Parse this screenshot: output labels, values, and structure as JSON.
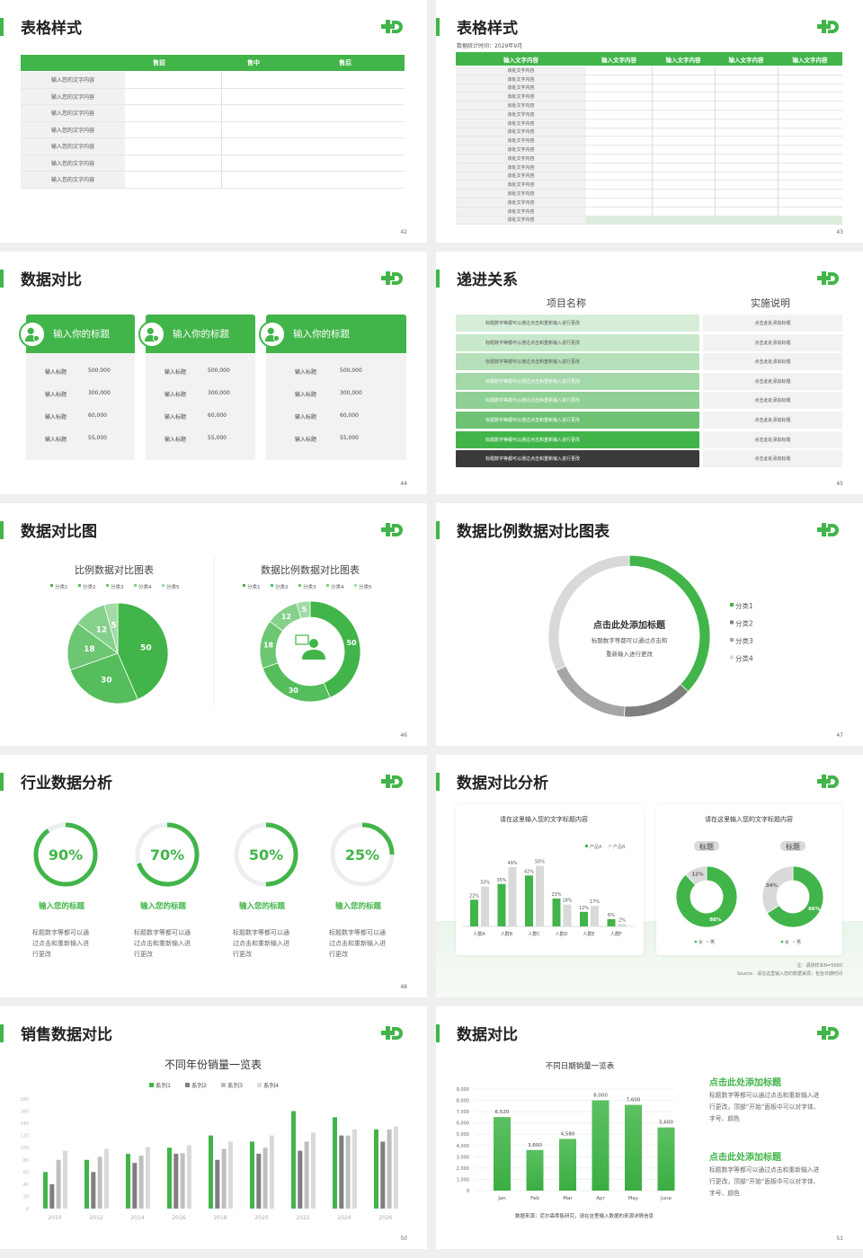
{
  "colors": {
    "accent": "#41b549",
    "dark": "#3a3a3a",
    "gray1": "#7f7f7f",
    "gray2": "#bfbfbf",
    "gray3": "#d9d9d9"
  },
  "logo_icon": "plus-d-logo-icon",
  "slides": {
    "s42": {
      "title": "表格样式",
      "page": "42",
      "headers": [
        "售前",
        "售中",
        "售后"
      ],
      "rows": [
        "输入您的文字内容",
        "输入您的文字内容",
        "输入您的文字内容",
        "输入您的文字内容",
        "输入您的文字内容",
        "输入您的文字内容",
        "输入您的文字内容"
      ]
    },
    "s43": {
      "title": "表格样式",
      "page": "43",
      "subtitle": "数据统计时间：2029年9月",
      "headers": [
        "输入文字内容",
        "输入文字内容",
        "输入文字内容",
        "输入文字内容",
        "输入文字内容"
      ],
      "rows": [
        "该处文字内容",
        "该处文字内容",
        "该处文字内容",
        "该处文字内容",
        "该处文字内容",
        "该处文字内容",
        "该处文字内容",
        "该处文字内容",
        "该处文字内容",
        "该处文字内容",
        "该处文字内容",
        "该处文字内容",
        "该处文字内容",
        "该处文字内容",
        "该处文字内容",
        "该处文字内容",
        "该处文字内容",
        "该处文字内容"
      ]
    },
    "s44": {
      "title": "数据对比",
      "page": "44",
      "cards": [
        {
          "icon": "phone-user-icon",
          "title": "输入你的标题",
          "rows": [
            {
              "k": "输入标题",
              "v": "500,000"
            },
            {
              "k": "输入标题",
              "v": "300,000"
            },
            {
              "k": "输入标题",
              "v": "60,000"
            },
            {
              "k": "输入标题",
              "v": "55,000"
            }
          ]
        },
        {
          "icon": "user-add-icon",
          "title": "输入你的标题",
          "rows": [
            {
              "k": "输入标题",
              "v": "500,000"
            },
            {
              "k": "输入标题",
              "v": "300,000"
            },
            {
              "k": "输入标题",
              "v": "60,000"
            },
            {
              "k": "输入标题",
              "v": "55,000"
            }
          ]
        },
        {
          "icon": "users-group-icon",
          "title": "输入你的标题",
          "rows": [
            {
              "k": "输入标题",
              "v": "500,000"
            },
            {
              "k": "输入标题",
              "v": "300,000"
            },
            {
              "k": "输入标题",
              "v": "60,000"
            },
            {
              "k": "输入标题",
              "v": "55,000"
            }
          ]
        }
      ]
    },
    "s45": {
      "title": "递进关系",
      "page": "45",
      "col1": "项目名称",
      "col2": "实施说明",
      "rows": [
        "标题数字等都可以通过点击和重新输入进行更改",
        "标题数字等都可以通过点击和重新输入进行更改",
        "标题数字等都可以通过点击和重新输入进行更改",
        "标题数字等都可以通过点击和重新输入进行更改",
        "标题数字等都可以通过点击和重新输入进行更改",
        "标题数字等都可以通过点击和重新输入进行更改",
        "标题数字等都可以通过点击和重新输入进行更改",
        "标题数字等都可以通过点击和重新输入进行更改"
      ],
      "notes": [
        "点击此处添加标题",
        "点击此处添加标题",
        "点击此处添加标题",
        "点击此处添加标题",
        "点击此处添加标题",
        "点击此处添加标题",
        "点击此处添加标题",
        "点击此处添加标题"
      ],
      "row_colors": [
        "#d6eed8",
        "#c8e8cb",
        "#b6e0ba",
        "#a3d8a8",
        "#8fd094",
        "#6dc274",
        "#41b549",
        "#3a3a3a"
      ]
    },
    "s46": {
      "title": "数据对比图",
      "page": "46"
    },
    "s47": {
      "title": "数据比例数据对比图表",
      "page": "47",
      "center_title": "点击此处添加标题",
      "center_text1": "标题数字等都可以通过点击和",
      "center_text2": "重新输入进行更改"
    },
    "s48": {
      "title": "行业数据分析",
      "page": "48",
      "items": [
        {
          "value": "90%",
          "percent": 90,
          "title": "输入您的标题",
          "text": [
            "标题数字等都可以通",
            "过点击和重新输入进",
            "行更改"
          ]
        },
        {
          "value": "70%",
          "percent": 70,
          "title": "输入您的标题",
          "text": [
            "标题数字等都可以通",
            "过点击和重新输入进",
            "行更改"
          ]
        },
        {
          "value": "50%",
          "percent": 50,
          "title": "输入您的标题",
          "text": [
            "标题数字等都可以通",
            "过点击和重新输入进",
            "行更改"
          ]
        },
        {
          "value": "25%",
          "percent": 25,
          "title": "输入您的标题",
          "text": [
            "标题数字等都可以通",
            "过点击和重新输入进",
            "行更改"
          ]
        }
      ]
    },
    "s49": {
      "title": "数据对比分析",
      "page": "49",
      "right_title": "请在这里输入您的文字标题内容",
      "tag1": "标题",
      "tag2": "标题",
      "note": "注：调研样本N=5000",
      "source": "Source：请在这里输入您的数据来源，包含日期时间"
    },
    "s50": {
      "title": "销售数据对比",
      "page": "50"
    },
    "s51": {
      "title": "数据对比",
      "page": "51",
      "blocks": [
        {
          "title": "点击此处添加标题",
          "text": [
            "标题数字等都可以通过点击和重新输入进",
            "行更改，顶部“开始”面板中可以对字体、",
            "字号、颜色"
          ]
        },
        {
          "title": "点击此处添加标题",
          "text": [
            "标题数字等都可以通过点击和重新输入进",
            "行更改，顶部“开始”面板中可以对字体、",
            "字号、颜色"
          ]
        }
      ]
    }
  },
  "chart_data": [
    {
      "id": "pie46",
      "type": "pie",
      "title": "比例数据对比图表",
      "legend": [
        "分类1",
        "分类2",
        "分类3",
        "分类4",
        "分类5"
      ],
      "values": [
        50,
        30,
        18,
        12,
        5
      ],
      "colors": [
        "#41b549",
        "#55bd5c",
        "#6cc672",
        "#85d08a",
        "#a1dba5"
      ],
      "legend_position": "top"
    },
    {
      "id": "donut46",
      "type": "pie",
      "title": "数据比例数据对比图表",
      "legend": [
        "分类1",
        "分类2",
        "分类3",
        "分类4",
        "分类5"
      ],
      "values": [
        50,
        30,
        18,
        12,
        5
      ],
      "colors": [
        "#41b549",
        "#55bd5c",
        "#6cc672",
        "#85d08a",
        "#a1dba5"
      ],
      "legend_position": "top",
      "center_icon": "customer-service-icon"
    },
    {
      "id": "donut47",
      "type": "pie",
      "legend": [
        "分类1",
        "分类2",
        "分类3",
        "分类4"
      ],
      "values": [
        37,
        14,
        17,
        32
      ],
      "colors": [
        "#41b549",
        "#7f7f7f",
        "#a6a6a6",
        "#d9d9d9"
      ],
      "legend_position": "right"
    },
    {
      "id": "bar49",
      "type": "bar",
      "title": "请在这里输入您的文字标题内容",
      "categories": [
        "人群A",
        "人群B",
        "人群C",
        "人群D",
        "人群E",
        "人群F"
      ],
      "series": [
        {
          "name": "产品A",
          "values": [
            22,
            35,
            42,
            23,
            12,
            6
          ],
          "color": "#41b549"
        },
        {
          "name": "产品B",
          "values": [
            33,
            49,
            50,
            18,
            17,
            2
          ],
          "color": "#d9d9d9"
        }
      ],
      "unit": "%",
      "legend_position": "top-right"
    },
    {
      "id": "donut49a",
      "type": "pie",
      "legend": [
        "女",
        "男"
      ],
      "values": [
        88,
        12
      ],
      "colors": [
        "#41b549",
        "#d9d9d9"
      ],
      "labels": [
        "88%",
        "12%"
      ]
    },
    {
      "id": "donut49b",
      "type": "pie",
      "legend": [
        "女",
        "男"
      ],
      "values": [
        66,
        34
      ],
      "colors": [
        "#41b549",
        "#d9d9d9"
      ],
      "labels": [
        "66%",
        "34%"
      ]
    },
    {
      "id": "bar50",
      "type": "bar",
      "title": "不同年份销量一览表",
      "categories": [
        "2010",
        "2012",
        "2014",
        "2016",
        "2018",
        "2020",
        "2022",
        "2024",
        "2026"
      ],
      "series": [
        {
          "name": "系列1",
          "values": [
            60,
            80,
            90,
            100,
            120,
            110,
            160,
            150,
            130
          ],
          "color": "#41b549"
        },
        {
          "name": "系列2",
          "values": [
            40,
            60,
            75,
            90,
            80,
            90,
            95,
            120,
            110
          ],
          "color": "#7f7f7f"
        },
        {
          "name": "系列3",
          "values": [
            80,
            85,
            87,
            91,
            98,
            100,
            110,
            120,
            130
          ],
          "color": "#bfbfbf"
        },
        {
          "name": "系列4",
          "values": [
            95,
            98,
            101,
            104,
            110,
            120,
            125,
            130,
            135
          ],
          "color": "#d9d9d9"
        }
      ],
      "ylim": [
        0,
        180
      ],
      "yticks": [
        "0",
        "20",
        "40",
        "60",
        "80",
        "100",
        "120",
        "140",
        "160",
        "180"
      ],
      "legend_position": "top"
    },
    {
      "id": "bar51",
      "type": "bar",
      "title": "不同日期销量一览表",
      "categories": [
        "Jan",
        "Feb",
        "Mar",
        "Apr",
        "May",
        "June"
      ],
      "values": [
        6520,
        3600,
        4580,
        8000,
        7600,
        5600
      ],
      "labels": [
        "6,520",
        "3,600",
        "4,580",
        "8,000",
        "7,600",
        "5,600"
      ],
      "ylim": [
        0,
        9000
      ],
      "yticks": [
        "0",
        "1,000",
        "2,000",
        "3,000",
        "4,000",
        "5,000",
        "6,000",
        "7,000",
        "8,000",
        "9,000"
      ],
      "source": "数据来源：尼尔森零售研究，请在这里输入数据的来源详情信息"
    }
  ]
}
